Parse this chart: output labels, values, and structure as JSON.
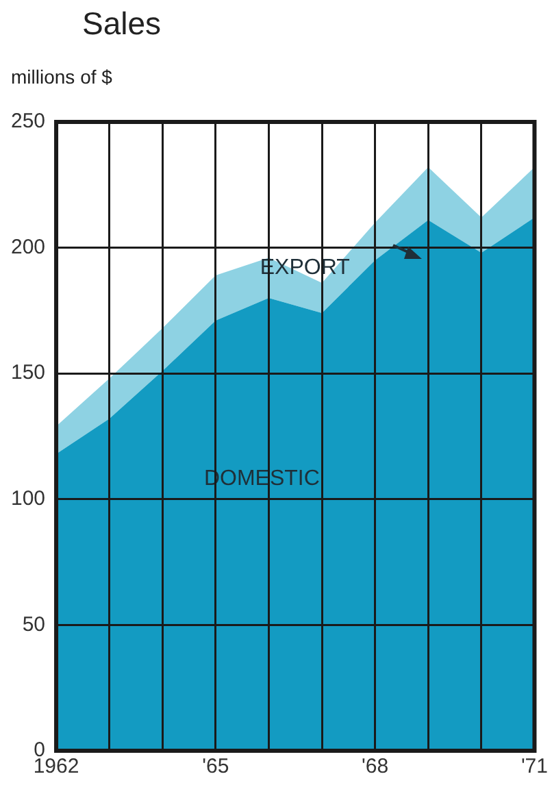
{
  "chart_data": {
    "type": "area",
    "title": "Sales",
    "ylabel": "millions of $",
    "stacked": true,
    "x": [
      1962,
      1963,
      1964,
      1965,
      1966,
      1967,
      1968,
      1969,
      1970,
      1971
    ],
    "series": [
      {
        "name": "DOMESTIC",
        "color": "#139bc2",
        "values": [
          118,
          132,
          151,
          171,
          180,
          174,
          195,
          211,
          198,
          212
        ]
      },
      {
        "name": "EXPORT",
        "color": "#8ed2e3",
        "values": [
          11,
          16,
          17,
          18,
          16,
          12,
          15,
          21,
          14,
          20
        ]
      }
    ],
    "xlim": [
      1962,
      1971
    ],
    "xticks": [
      {
        "value": 1962,
        "label": "1962"
      },
      {
        "value": 1963,
        "label": null
      },
      {
        "value": 1964,
        "label": null
      },
      {
        "value": 1965,
        "label": "'65"
      },
      {
        "value": 1966,
        "label": null
      },
      {
        "value": 1967,
        "label": null
      },
      {
        "value": 1968,
        "label": "'68"
      },
      {
        "value": 1969,
        "label": null
      },
      {
        "value": 1970,
        "label": null
      },
      {
        "value": 1971,
        "label": "'71"
      }
    ],
    "ylim": [
      0,
      250
    ],
    "yticks": [
      0,
      50,
      100,
      150,
      200,
      250
    ],
    "grid": true,
    "legend": false
  }
}
